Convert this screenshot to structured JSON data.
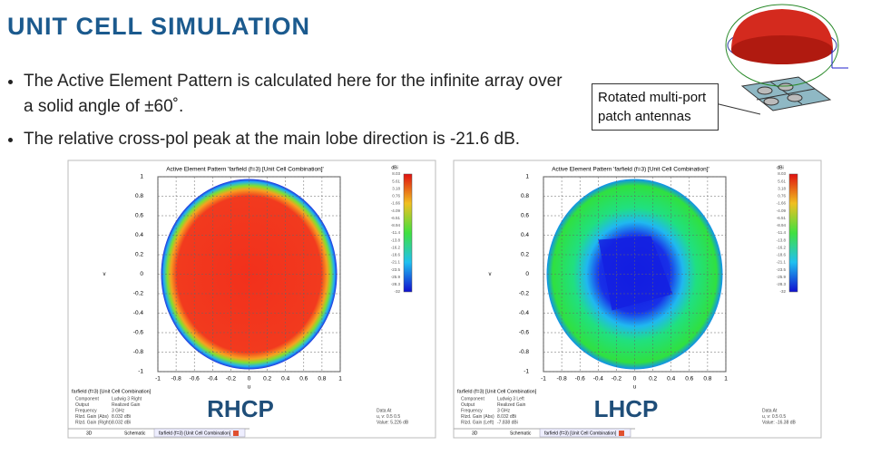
{
  "header": {
    "title": "UNIT CELL SIMULATION"
  },
  "bullets": [
    "The Active Element Pattern is calculated here for the infinite array over a solid angle of ±60˚.",
    "The relative cross-pol peak at the main lobe direction is -21.6 dB."
  ],
  "callout": "Rotated multi-port patch antennas",
  "plots": [
    {
      "title": "Active Element Pattern 'farfield (f=3) [Unit Cell Combination]'",
      "x_label": "u",
      "y_label": "v",
      "xticks": [
        "-1",
        "-0.8",
        "-0.6",
        "-0.4",
        "-0.2",
        "0",
        "0.2",
        "0.4",
        "0.6",
        "0.8",
        "1"
      ],
      "yticks": [
        "1",
        "0.8",
        "0.6",
        "0.4",
        "0.2",
        "0",
        "-0.2",
        "-0.4",
        "-0.6",
        "-0.8",
        "-1"
      ],
      "colorbar_unit": "dBi",
      "colorbar_ticks": [
        "8.03",
        "5.61",
        "3.18",
        "0.76",
        "-1.66",
        "-4.09",
        "-6.51",
        "-8.94",
        "-11.4",
        "-13.8",
        "-16.2",
        "-18.6",
        "-21.1",
        "-23.5",
        "-25.9",
        "-28.3",
        "-32"
      ],
      "footer_title": "farfield (f=3) [Unit Cell Combination]",
      "info": [
        [
          "Component",
          "Ludwig 3 Right"
        ],
        [
          "Output",
          "Realized Gain"
        ],
        [
          "Frequency",
          "3 GHz"
        ],
        [
          "Rlzd. Gain (Abs)",
          "8.032 dBi"
        ],
        [
          "Rlzd. Gain (Right)",
          "8.032 dBi"
        ]
      ],
      "data_at": [
        "Data At",
        "u, v:   0.5  0.5",
        "Value:  5.226 dB"
      ],
      "label": "RHCP",
      "tabs": [
        "3D",
        "Schematic",
        "farfield (f=3) [Unit Cell Combination]"
      ]
    },
    {
      "title": "Active Element Pattern 'farfield (f=3) [Unit Cell Combination]'",
      "x_label": "u",
      "y_label": "v",
      "xticks": [
        "-1",
        "-0.8",
        "-0.6",
        "-0.4",
        "-0.2",
        "0",
        "0.2",
        "0.4",
        "0.6",
        "0.8",
        "1"
      ],
      "yticks": [
        "1",
        "0.8",
        "0.6",
        "0.4",
        "0.2",
        "0",
        "-0.2",
        "-0.4",
        "-0.6",
        "-0.8",
        "-1"
      ],
      "colorbar_unit": "dBi",
      "colorbar_ticks": [
        "8.03",
        "5.61",
        "3.18",
        "0.76",
        "-1.66",
        "-4.09",
        "-6.51",
        "-8.94",
        "-11.4",
        "-13.8",
        "-16.2",
        "-18.6",
        "-21.1",
        "-23.5",
        "-25.9",
        "-28.3",
        "-32"
      ],
      "footer_title": "farfield (f=3) [Unit Cell Combination]",
      "info": [
        [
          "Component",
          "Ludwig 3 Left"
        ],
        [
          "Output",
          "Realized Gain"
        ],
        [
          "Frequency",
          "3 GHz"
        ],
        [
          "Rlzd. Gain (Abs)",
          "8.032 dBi"
        ],
        [
          "Rlzd. Gain (Left)",
          "-7.838 dBi"
        ]
      ],
      "data_at": [
        "Data At",
        "u, v:   0.5  0.5",
        "Value:  -16.38 dB"
      ],
      "label": "LHCP",
      "tabs": [
        "3D",
        "Schematic",
        "farfield (f=3) [Unit Cell Combination]"
      ]
    }
  ]
}
